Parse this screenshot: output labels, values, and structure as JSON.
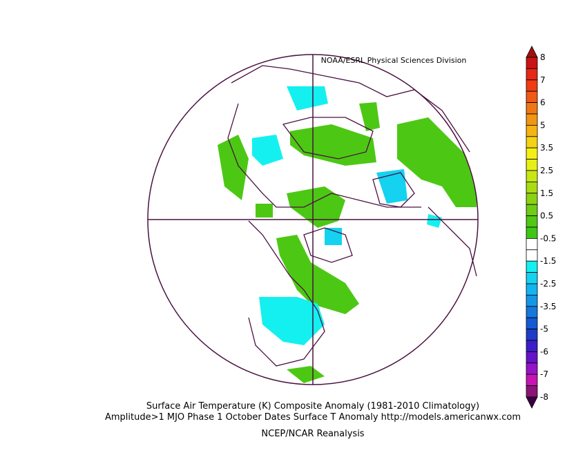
{
  "credit": "NOAA/ESRL Physical Sciences Division",
  "title": "Surface Air Temperature (K) Composite Anomaly (1981-2010 Climatology)",
  "subtitle": "Amplitude>1 MJO Phase 1 October Dates Surface T Anomaly http://models.americanwx.com",
  "source": "NCEP/NCAR Reanalysis",
  "colorbar": {
    "levels": [
      8,
      7,
      6,
      5,
      3.5,
      2.5,
      1.5,
      0.5,
      -0.5,
      -1.5,
      -2.5,
      -3.5,
      -5,
      -6,
      -7,
      -8
    ],
    "top_color": "#a01010",
    "bottom_color": "#3a0040",
    "colors": [
      "#c81414",
      "#e62814",
      "#f03c14",
      "#f05a14",
      "#f07814",
      "#f09614",
      "#f5b414",
      "#f5d214",
      "#f5f014",
      "#e6f014",
      "#c8e614",
      "#aadc14",
      "#8cd214",
      "#6ecc14",
      "#50c814",
      "#3cc814",
      "#ffffff",
      "#ffffff",
      "#14f0f0",
      "#14d2f0",
      "#14b4f0",
      "#1496e6",
      "#1478dc",
      "#145ad2",
      "#1e3cc8",
      "#3c1ec8",
      "#6414c8",
      "#9614c8",
      "#c814b4",
      "#8c1478"
    ]
  }
}
